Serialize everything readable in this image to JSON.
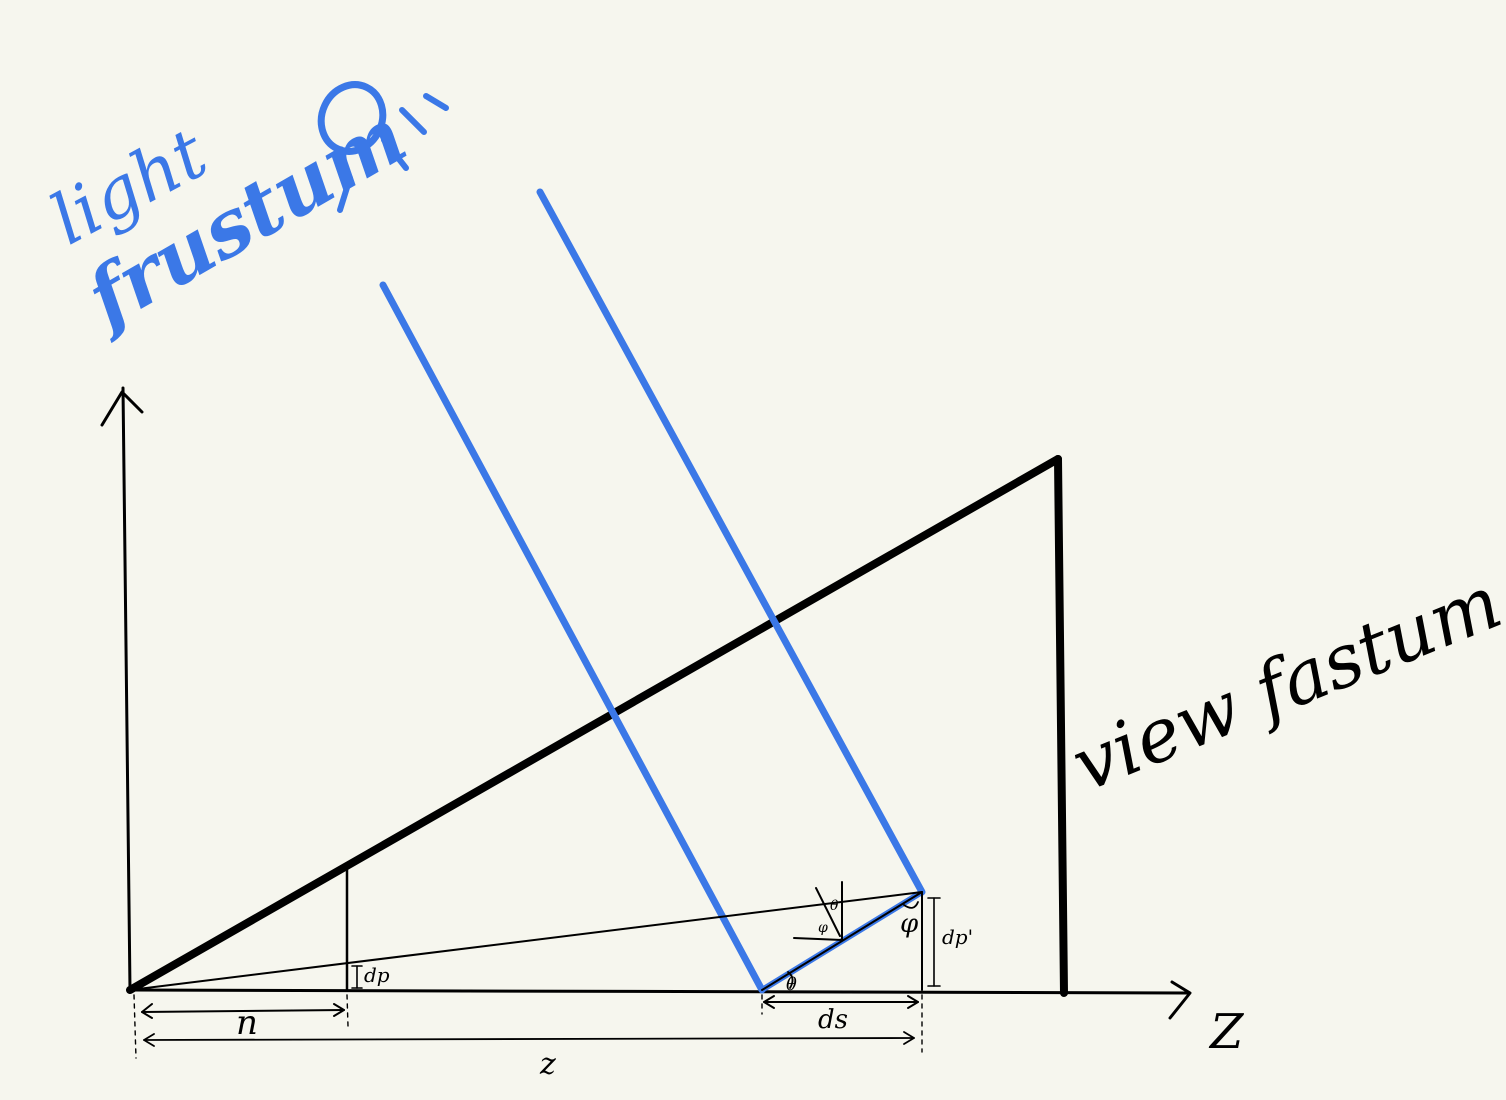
{
  "colors": {
    "background": "#f6f6ee",
    "ink": "#000000",
    "light": "#3b78e7"
  },
  "annotations": {
    "light_frustum_line1": "light",
    "light_frustum_line2": "frustum",
    "view_frustum": "view fastum",
    "axis_z": "Z",
    "n": "n",
    "z": "z",
    "ds": "ds",
    "dp": "dp",
    "dp_prime": "dp'",
    "theta": "θ",
    "theta_small": "θ",
    "phi": "φ",
    "phi_small": "φ"
  },
  "icons": [
    "sun-icon"
  ]
}
